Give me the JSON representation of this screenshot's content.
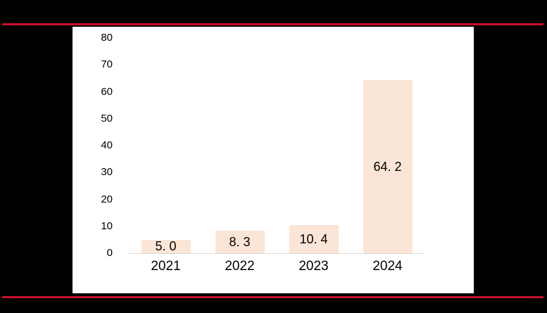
{
  "page": {
    "background_color": "#000000",
    "panel_background_color": "#FFFFFF",
    "rule_color": "#C8102E"
  },
  "chart_data": {
    "type": "bar",
    "title": "",
    "xlabel": "",
    "ylabel": "",
    "categories": [
      "2021",
      "2022",
      "2023",
      "2024"
    ],
    "values": [
      5.0,
      8.3,
      10.4,
      64.2
    ],
    "data_labels": [
      "5. 0",
      "8. 3",
      "10. 4",
      "64. 2"
    ],
    "ylim": [
      0,
      80
    ],
    "y_ticks": [
      0,
      10,
      20,
      30,
      40,
      50,
      60,
      70,
      80
    ],
    "grid": false,
    "legend": false,
    "bar_color": "#FBE5D6",
    "axis_line_color": "#D9D9D9",
    "text_color": "#000000"
  }
}
